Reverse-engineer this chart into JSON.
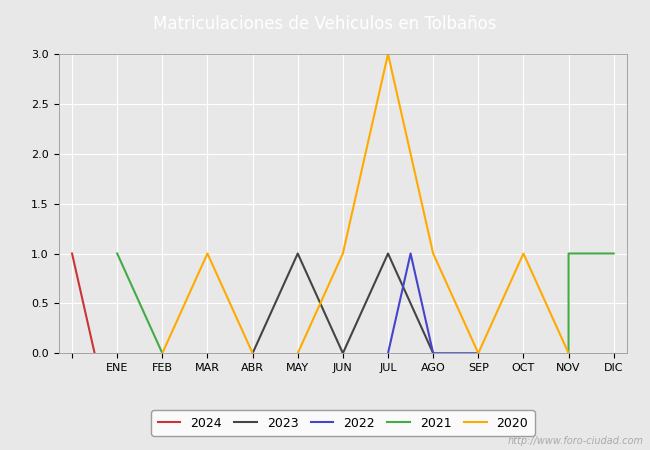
{
  "title": "Matriculaciones de Vehiculos en Tolbaños",
  "title_color": "white",
  "title_bg_color": "#4a8fd4",
  "x_labels": [
    "",
    "ENE",
    "FEB",
    "MAR",
    "ABR",
    "MAY",
    "JUN",
    "JUL",
    "AGO",
    "SEP",
    "OCT",
    "NOV",
    "DIC"
  ],
  "series": {
    "2024": {
      "color": "#cc3333",
      "segments": [
        [
          [
            0,
            1
          ],
          [
            0.5,
            0
          ]
        ]
      ]
    },
    "2023": {
      "color": "#444444",
      "segments": [
        [
          [
            4,
            0
          ],
          [
            5,
            1
          ],
          [
            6,
            0
          ]
        ],
        [
          [
            6,
            0
          ],
          [
            7,
            1
          ],
          [
            8,
            0
          ]
        ]
      ]
    },
    "2022": {
      "color": "#4444cc",
      "segments": [
        [
          [
            7,
            0
          ],
          [
            7.5,
            1
          ],
          [
            8,
            0
          ]
        ],
        [
          [
            8,
            0
          ],
          [
            9,
            0
          ]
        ]
      ]
    },
    "2021": {
      "color": "#44aa44",
      "segments": [
        [
          [
            1,
            1
          ],
          [
            2,
            0
          ]
        ],
        [
          [
            11,
            0
          ],
          [
            11,
            1
          ],
          [
            12,
            1
          ]
        ]
      ]
    },
    "2020": {
      "color": "#ffaa00",
      "segments": [
        [
          [
            2,
            0
          ],
          [
            3,
            1
          ],
          [
            4,
            0
          ]
        ],
        [
          [
            5,
            0
          ],
          [
            6,
            1
          ],
          [
            7,
            3
          ],
          [
            8,
            1
          ],
          [
            9,
            0
          ]
        ],
        [
          [
            9,
            0
          ],
          [
            10,
            1
          ],
          [
            11,
            0
          ]
        ]
      ]
    }
  },
  "legend_order": [
    "2024",
    "2023",
    "2022",
    "2021",
    "2020"
  ],
  "ylim": [
    0.0,
    3.0
  ],
  "yticks": [
    0.0,
    0.5,
    1.0,
    1.5,
    2.0,
    2.5,
    3.0
  ],
  "bg_color": "#e8e8e8",
  "plot_bg_color": "#e8e8e8",
  "watermark": "http://www.foro-ciudad.com",
  "grid_color": "white",
  "title_fontsize": 12
}
